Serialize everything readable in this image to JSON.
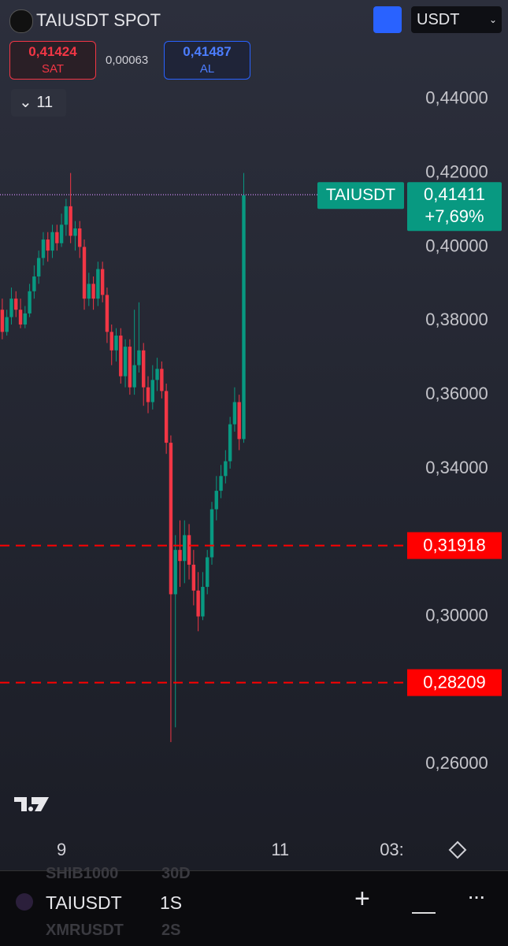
{
  "header": {
    "symbol_title": "TAIUSDT SPOT",
    "sell_price": "0,41424",
    "sell_label": "SAT",
    "spread": "0,00063",
    "buy_price": "0,41487",
    "buy_label": "AL",
    "indicator_count": "11",
    "currency": "USDT"
  },
  "chart_data": {
    "type": "candlestick",
    "up_color": "#089981",
    "down_color": "#f23645",
    "open": [
      0.383,
      0.377,
      0.381,
      0.386,
      0.383,
      0.379,
      0.382,
      0.388,
      0.392,
      0.397,
      0.402,
      0.399,
      0.404,
      0.401,
      0.406,
      0.411,
      0.403,
      0.405,
      0.4,
      0.386,
      0.39,
      0.386,
      0.394,
      0.387,
      0.377,
      0.372,
      0.376,
      0.365,
      0.373,
      0.362,
      0.368,
      0.372,
      0.362,
      0.358,
      0.364,
      0.367,
      0.361,
      0.347,
      0.306,
      0.318,
      0.315,
      0.322,
      0.314,
      0.307,
      0.3,
      0.308,
      0.316,
      0.329,
      0.334,
      0.338,
      0.342,
      0.352,
      0.358,
      0.348
    ],
    "high": [
      0.386,
      0.383,
      0.389,
      0.388,
      0.386,
      0.384,
      0.39,
      0.395,
      0.399,
      0.404,
      0.404,
      0.406,
      0.406,
      0.409,
      0.413,
      0.42,
      0.407,
      0.407,
      0.402,
      0.393,
      0.392,
      0.396,
      0.396,
      0.389,
      0.379,
      0.378,
      0.378,
      0.375,
      0.375,
      0.383,
      0.385,
      0.374,
      0.365,
      0.368,
      0.37,
      0.369,
      0.363,
      0.349,
      0.322,
      0.326,
      0.326,
      0.325,
      0.318,
      0.312,
      0.312,
      0.318,
      0.331,
      0.338,
      0.341,
      0.345,
      0.354,
      0.362,
      0.36,
      0.42
    ],
    "low": [
      0.375,
      0.376,
      0.379,
      0.381,
      0.378,
      0.378,
      0.381,
      0.386,
      0.39,
      0.395,
      0.396,
      0.397,
      0.399,
      0.4,
      0.403,
      0.401,
      0.399,
      0.397,
      0.383,
      0.384,
      0.383,
      0.384,
      0.385,
      0.374,
      0.368,
      0.369,
      0.363,
      0.362,
      0.36,
      0.36,
      0.366,
      0.357,
      0.355,
      0.356,
      0.361,
      0.359,
      0.344,
      0.266,
      0.27,
      0.308,
      0.309,
      0.31,
      0.303,
      0.296,
      0.299,
      0.306,
      0.314,
      0.326,
      0.332,
      0.336,
      0.34,
      0.35,
      0.345,
      0.347
    ],
    "close": [
      0.377,
      0.381,
      0.386,
      0.383,
      0.379,
      0.382,
      0.388,
      0.392,
      0.397,
      0.402,
      0.399,
      0.404,
      0.401,
      0.406,
      0.411,
      0.403,
      0.405,
      0.4,
      0.386,
      0.39,
      0.386,
      0.394,
      0.387,
      0.377,
      0.372,
      0.376,
      0.365,
      0.373,
      0.362,
      0.368,
      0.372,
      0.362,
      0.358,
      0.364,
      0.367,
      0.361,
      0.347,
      0.306,
      0.318,
      0.315,
      0.322,
      0.314,
      0.307,
      0.3,
      0.308,
      0.316,
      0.329,
      0.334,
      0.338,
      0.342,
      0.352,
      0.358,
      0.348,
      0.414
    ],
    "xlim": [
      -0.5,
      111
    ],
    "xticks": [
      {
        "value": 13,
        "label": "9"
      },
      {
        "value": 61,
        "label": "11"
      },
      {
        "value": 85.5,
        "label": "03:"
      }
    ],
    "ylim": [
      0.243,
      0.4455
    ],
    "yticks": [
      {
        "value": 0.26,
        "label": "0,26000"
      },
      {
        "value": 0.3,
        "label": "0,30000"
      },
      {
        "value": 0.34,
        "label": "0,34000"
      },
      {
        "value": 0.36,
        "label": "0,36000"
      },
      {
        "value": 0.38,
        "label": "0,38000"
      },
      {
        "value": 0.4,
        "label": "0,40000"
      },
      {
        "value": 0.42,
        "label": "0,42000"
      },
      {
        "value": 0.44,
        "label": "0,44000"
      }
    ],
    "price_lines": [
      {
        "value": 0.31918,
        "label": "0,31918",
        "color": "#ff0000"
      },
      {
        "value": 0.28209,
        "label": "0,28209",
        "color": "#ff0000"
      }
    ],
    "last_price": {
      "symbol": "TAIUSDT",
      "value": 0.41411,
      "label": "0,41411",
      "change": "+7,69%",
      "color": "#089981"
    }
  },
  "footer": {
    "watch_prev": [
      "SHIB1000",
      "30D"
    ],
    "symbol": "TAIUSDT",
    "interval": "1S",
    "watch_next": [
      "XMRUSDT",
      "2S"
    ]
  }
}
